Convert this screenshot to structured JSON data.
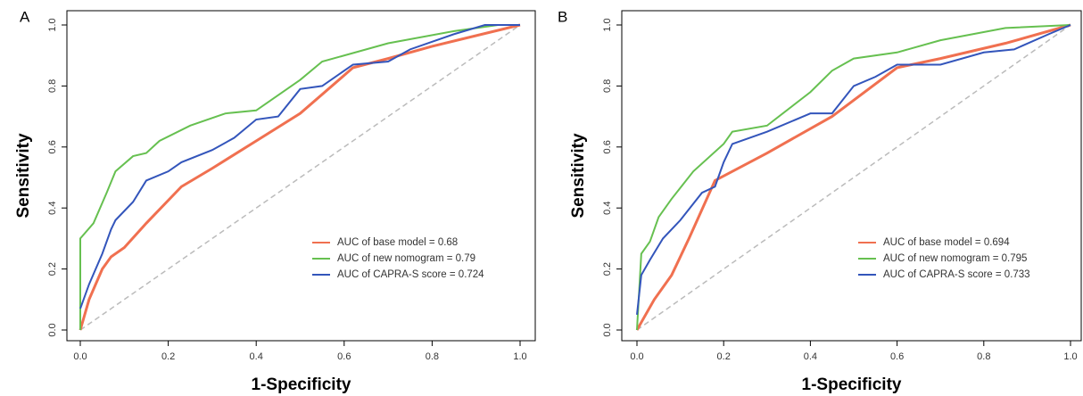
{
  "chart_data": [
    {
      "type": "line",
      "title": "A",
      "xlabel": "1-Specificity",
      "ylabel": "Sensitivity",
      "xlim": [
        0,
        1
      ],
      "ylim": [
        0,
        1
      ],
      "xticks": [
        {
          "value": 0,
          "label": "0.0"
        },
        0.2,
        0.4,
        0.6,
        0.8,
        {
          "value": 1,
          "label": "1.0"
        }
      ],
      "yticks": [
        {
          "value": 0,
          "label": "0.0"
        },
        0.2,
        0.4,
        0.6,
        0.8,
        {
          "value": 1,
          "label": "1.0"
        }
      ],
      "series": [
        {
          "name": "AUC of base model = 0.68",
          "color": "#f07050",
          "x": [
            0,
            0.02,
            0.05,
            0.07,
            0.1,
            0.15,
            0.23,
            0.3,
            0.4,
            0.5,
            0.62,
            0.7,
            0.8,
            1
          ],
          "values": [
            0,
            0.1,
            0.2,
            0.24,
            0.27,
            0.35,
            0.47,
            0.53,
            0.62,
            0.71,
            0.86,
            0.89,
            0.93,
            1
          ]
        },
        {
          "name": "AUC of new nomogram = 0.79",
          "color": "#66c050",
          "x": [
            0,
            0,
            0.03,
            0.06,
            0.08,
            0.12,
            0.15,
            0.18,
            0.25,
            0.33,
            0.4,
            0.5,
            0.55,
            0.7,
            0.85,
            0.95,
            1
          ],
          "values": [
            0,
            0.3,
            0.35,
            0.45,
            0.52,
            0.57,
            0.58,
            0.62,
            0.67,
            0.71,
            0.72,
            0.82,
            0.88,
            0.94,
            0.98,
            1,
            1
          ]
        },
        {
          "name": "AUC of CAPRA-S score = 0.724",
          "color": "#3355bb",
          "x": [
            0,
            0.02,
            0.05,
            0.07,
            0.08,
            0.12,
            0.15,
            0.2,
            0.23,
            0.3,
            0.35,
            0.4,
            0.45,
            0.5,
            0.55,
            0.62,
            0.7,
            0.75,
            0.85,
            0.92,
            1
          ],
          "values": [
            0.07,
            0.15,
            0.25,
            0.33,
            0.36,
            0.42,
            0.49,
            0.52,
            0.55,
            0.59,
            0.63,
            0.69,
            0.7,
            0.79,
            0.8,
            0.87,
            0.88,
            0.92,
            0.97,
            1,
            1
          ]
        }
      ]
    },
    {
      "type": "line",
      "title": "B",
      "xlabel": "1-Specificity",
      "ylabel": "Sensitivity",
      "xlim": [
        0,
        1
      ],
      "ylim": [
        0,
        1
      ],
      "xticks": [
        {
          "value": 0,
          "label": "0.0"
        },
        0.2,
        0.4,
        0.6,
        0.8,
        {
          "value": 1,
          "label": "1.0"
        }
      ],
      "yticks": [
        {
          "value": 0,
          "label": "0.0"
        },
        0.2,
        0.4,
        0.6,
        0.8,
        {
          "value": 1,
          "label": "1.0"
        }
      ],
      "series": [
        {
          "name": "AUC of base model = 0.694",
          "color": "#f07050",
          "x": [
            0,
            0.04,
            0.08,
            0.12,
            0.18,
            0.3,
            0.45,
            0.6,
            0.7,
            0.85,
            1
          ],
          "values": [
            0,
            0.1,
            0.18,
            0.3,
            0.49,
            0.58,
            0.7,
            0.86,
            0.89,
            0.94,
            1
          ]
        },
        {
          "name": "AUC of new nomogram = 0.795",
          "color": "#66c050",
          "x": [
            0,
            0.01,
            0.03,
            0.05,
            0.08,
            0.13,
            0.2,
            0.22,
            0.3,
            0.4,
            0.45,
            0.5,
            0.6,
            0.7,
            0.85,
            1
          ],
          "values": [
            0,
            0.25,
            0.29,
            0.37,
            0.43,
            0.52,
            0.61,
            0.65,
            0.67,
            0.78,
            0.85,
            0.89,
            0.91,
            0.95,
            0.99,
            1
          ]
        },
        {
          "name": "AUC of CAPRA-S score = 0.733",
          "color": "#3355bb",
          "x": [
            0,
            0.01,
            0.03,
            0.06,
            0.1,
            0.15,
            0.18,
            0.2,
            0.22,
            0.3,
            0.4,
            0.45,
            0.5,
            0.55,
            0.6,
            0.7,
            0.8,
            0.87,
            0.95,
            1
          ],
          "values": [
            0.05,
            0.18,
            0.23,
            0.3,
            0.36,
            0.45,
            0.47,
            0.55,
            0.61,
            0.65,
            0.71,
            0.71,
            0.8,
            0.83,
            0.87,
            0.87,
            0.91,
            0.92,
            0.97,
            1
          ]
        }
      ]
    }
  ]
}
